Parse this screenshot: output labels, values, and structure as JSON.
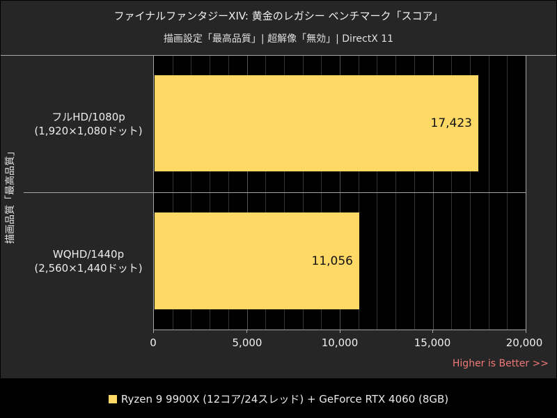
{
  "header": {
    "title": "ファイナルファンタジーXIV: 黄金のレガシー ベンチマーク「スコア」",
    "subtitle": "描画設定「最高品質」| 超解像「無効」| DirectX 11"
  },
  "axis": {
    "y_group_label": "描画品質「最高品質」",
    "ticks": [
      "0",
      "5,000",
      "10,000",
      "15,000",
      "20,000"
    ],
    "note": "Higher is Better >>"
  },
  "categories": [
    {
      "line1": "フルHD/1080p",
      "line2": "(1,920×1,080ドット)",
      "value_label": "17,423"
    },
    {
      "line1": "WQHD/1440p",
      "line2": "(2,560×1,440ドット)",
      "value_label": "11,056"
    }
  ],
  "legend": {
    "label": "Ryzen 9 9900X (12コア/24スレッド) + GeForce RTX 4060 (8GB)",
    "color": "#ffd966"
  },
  "chart_data": {
    "type": "bar",
    "orientation": "horizontal",
    "title": "ファイナルファンタジーXIV: 黄金のレガシー ベンチマーク「スコア」",
    "subtitle": "描画設定「最高品質」| 超解像「無効」| DirectX 11",
    "categories": [
      "フルHD/1080p (1,920×1,080ドット)",
      "WQHD/1440p (2,560×1,440ドット)"
    ],
    "series": [
      {
        "name": "Ryzen 9 9900X (12コア/24スレッド) + GeForce RTX 4060 (8GB)",
        "values": [
          17423,
          11056
        ],
        "color": "#ffd966"
      }
    ],
    "xlabel": "",
    "ylabel": "描画品質「最高品質」",
    "xlim": [
      0,
      20000
    ],
    "xticks": [
      0,
      5000,
      10000,
      15000,
      20000
    ],
    "grid": true,
    "legend_position": "bottom",
    "annotations": [
      "Higher is Better >>"
    ]
  }
}
